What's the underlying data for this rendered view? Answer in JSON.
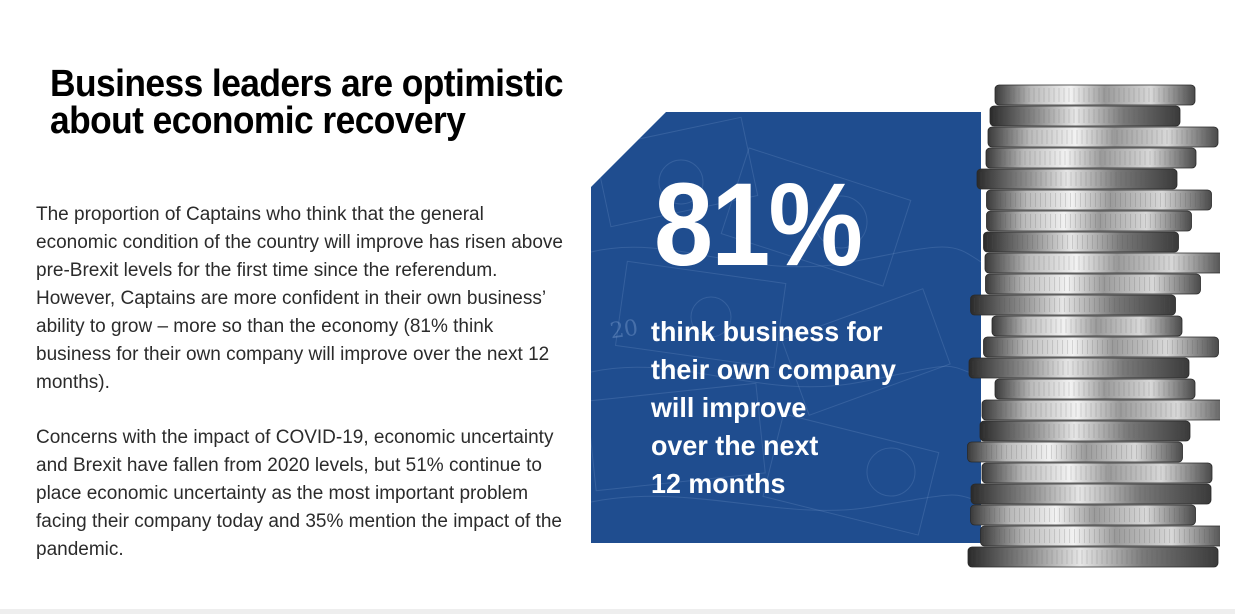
{
  "headline": {
    "line1": "Business leaders are optimistic",
    "line2": "about economic recovery"
  },
  "body": {
    "paragraph1": "The proportion of Captains who think that the general economic condition of the country will improve has risen above pre-Brexit levels for the first time since the referendum. However, Captains are more confident in their own business’ ability to grow – more so than the economy (81% think business for their own company will improve over the next 12 months).",
    "paragraph2": "Concerns with the impact of COVID-19, economic uncertainty and Brexit have fallen from 2020 levels, but 51% continue to place economic uncertainty as the most important problem facing their company today and 35% mention the impact of the pandemic."
  },
  "callout": {
    "stat": "81%",
    "caption_lines": [
      "think business for",
      "their own company",
      "will improve",
      "over the next",
      "12 months"
    ],
    "panel_color": "#1f4d8f",
    "background_image": "banknotes",
    "background_note_value": "20"
  },
  "image": {
    "subject": "stack-of-coins-icon"
  }
}
